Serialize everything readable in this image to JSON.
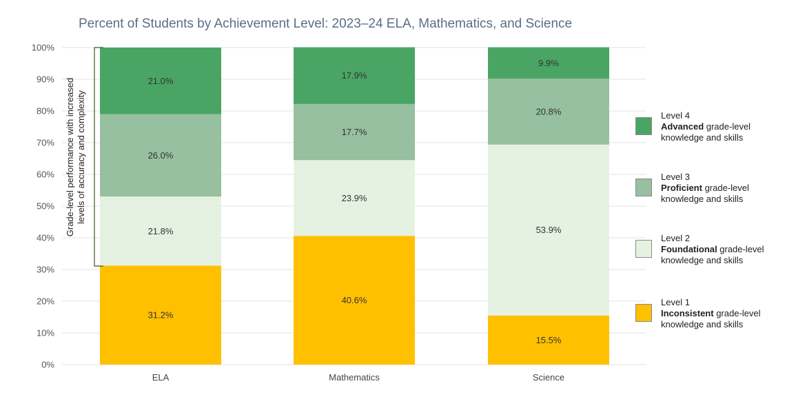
{
  "chart_data": {
    "type": "bar",
    "stacked": true,
    "title": "Percent of Students by Achievement Level: 2023–24 ELA, Mathematics, and Science",
    "ylim": [
      0,
      100
    ],
    "yticks": [
      "0%",
      "10%",
      "20%",
      "30%",
      "40%",
      "50%",
      "60%",
      "70%",
      "80%",
      "90%",
      "100%"
    ],
    "categories": [
      "ELA",
      "Mathematics",
      "Science"
    ],
    "series": [
      {
        "name": "Level 1",
        "values": [
          31.2,
          40.6,
          15.5
        ],
        "labels": [
          "31.2%",
          "40.6%",
          "15.5%"
        ],
        "color": "#ffc000"
      },
      {
        "name": "Level 2",
        "values": [
          21.8,
          23.9,
          53.9
        ],
        "labels": [
          "21.8%",
          "23.9%",
          "53.9%"
        ],
        "color": "#e6f2e1"
      },
      {
        "name": "Level 3",
        "values": [
          26.0,
          17.7,
          20.8
        ],
        "labels": [
          "26.0%",
          "17.7%",
          "20.8%"
        ],
        "color": "#96c09f"
      },
      {
        "name": "Level 4",
        "values": [
          21.0,
          17.9,
          9.9
        ],
        "labels": [
          "21.0%",
          "17.9%",
          "9.9%"
        ],
        "color": "#4aa564"
      }
    ],
    "grid": true,
    "legend_position": "right",
    "annotation": {
      "line1": "Grade-level performance with increased",
      "line2": "levels of accuracy and complexity"
    }
  },
  "legend": [
    {
      "level": "Level 4",
      "bold": "Advanced",
      "rest1": " grade-level",
      "rest2": "knowledge and skills",
      "color": "#4aa564"
    },
    {
      "level": "Level 3",
      "bold": "Proficient",
      "rest1": " grade-level",
      "rest2": "knowledge and skills",
      "color": "#96c09f"
    },
    {
      "level": "Level 2",
      "bold": "Foundational",
      "rest1": " grade-level",
      "rest2": "knowledge and skills",
      "color": "#e6f2e1"
    },
    {
      "level": "Level 1",
      "bold": "Inconsistent",
      "rest1": " grade-level",
      "rest2": "knowledge and skills",
      "color": "#ffc000"
    }
  ]
}
